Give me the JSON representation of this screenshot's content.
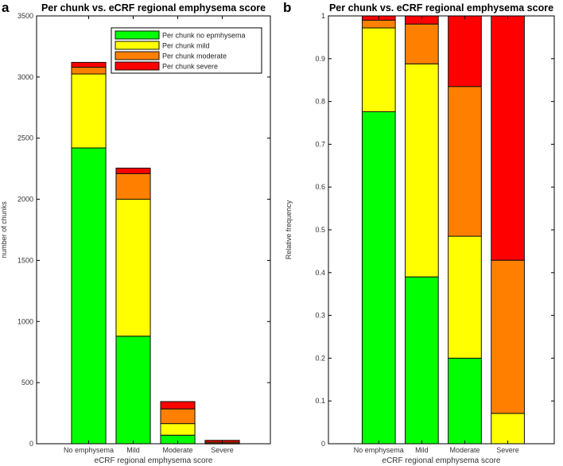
{
  "chart_data": [
    {
      "panel_label": "a",
      "type": "bar",
      "stacked": true,
      "title": "Per chunk vs. eCRF regional emphysema score",
      "xlabel": "eCRF regional emphysema score",
      "ylabel": "number of chunks",
      "categories": [
        "No emphysema",
        "Mild",
        "Moderate",
        "Severe"
      ],
      "ylim": [
        0,
        3500
      ],
      "yticks": [
        0,
        500,
        1000,
        1500,
        2000,
        2500,
        3000,
        3500
      ],
      "legend_position": "top-right",
      "series": [
        {
          "name": "Per chunk no epmhysema",
          "color": "#00ff00",
          "values": [
            2420,
            880,
            70,
            0
          ]
        },
        {
          "name": "Per chunk mild",
          "color": "#ffff00",
          "values": [
            605,
            1120,
            95,
            2
          ]
        },
        {
          "name": "Per chunk moderate",
          "color": "#ff8000",
          "values": [
            55,
            210,
            120,
            10
          ]
        },
        {
          "name": "Per chunk severe",
          "color": "#ff0000",
          "values": [
            40,
            45,
            60,
            16
          ]
        }
      ]
    },
    {
      "panel_label": "b",
      "type": "bar",
      "stacked": true,
      "title": "Per chunk vs. eCRF regional emphysema score",
      "xlabel": "eCRF regional emphysema score",
      "ylabel": "Relative frequency",
      "categories": [
        "No emphysema",
        "Mild",
        "Moderate",
        "Severe"
      ],
      "ylim": [
        0,
        1
      ],
      "yticks": [
        0,
        0.1,
        0.2,
        0.3,
        0.4,
        0.5,
        0.6,
        0.7,
        0.8,
        0.9,
        1
      ],
      "series": [
        {
          "name": "Per chunk no epmhysema",
          "color": "#00ff00",
          "values": [
            0.776,
            0.39,
            0.2,
            0
          ]
        },
        {
          "name": "Per chunk mild",
          "color": "#ffff00",
          "values": [
            0.196,
            0.498,
            0.285,
            0.071
          ]
        },
        {
          "name": "Per chunk moderate",
          "color": "#ff8000",
          "values": [
            0.018,
            0.093,
            0.35,
            0.358
          ]
        },
        {
          "name": "Per chunk severe",
          "color": "#ff0000",
          "values": [
            0.01,
            0.019,
            0.165,
            0.571
          ]
        }
      ]
    }
  ]
}
